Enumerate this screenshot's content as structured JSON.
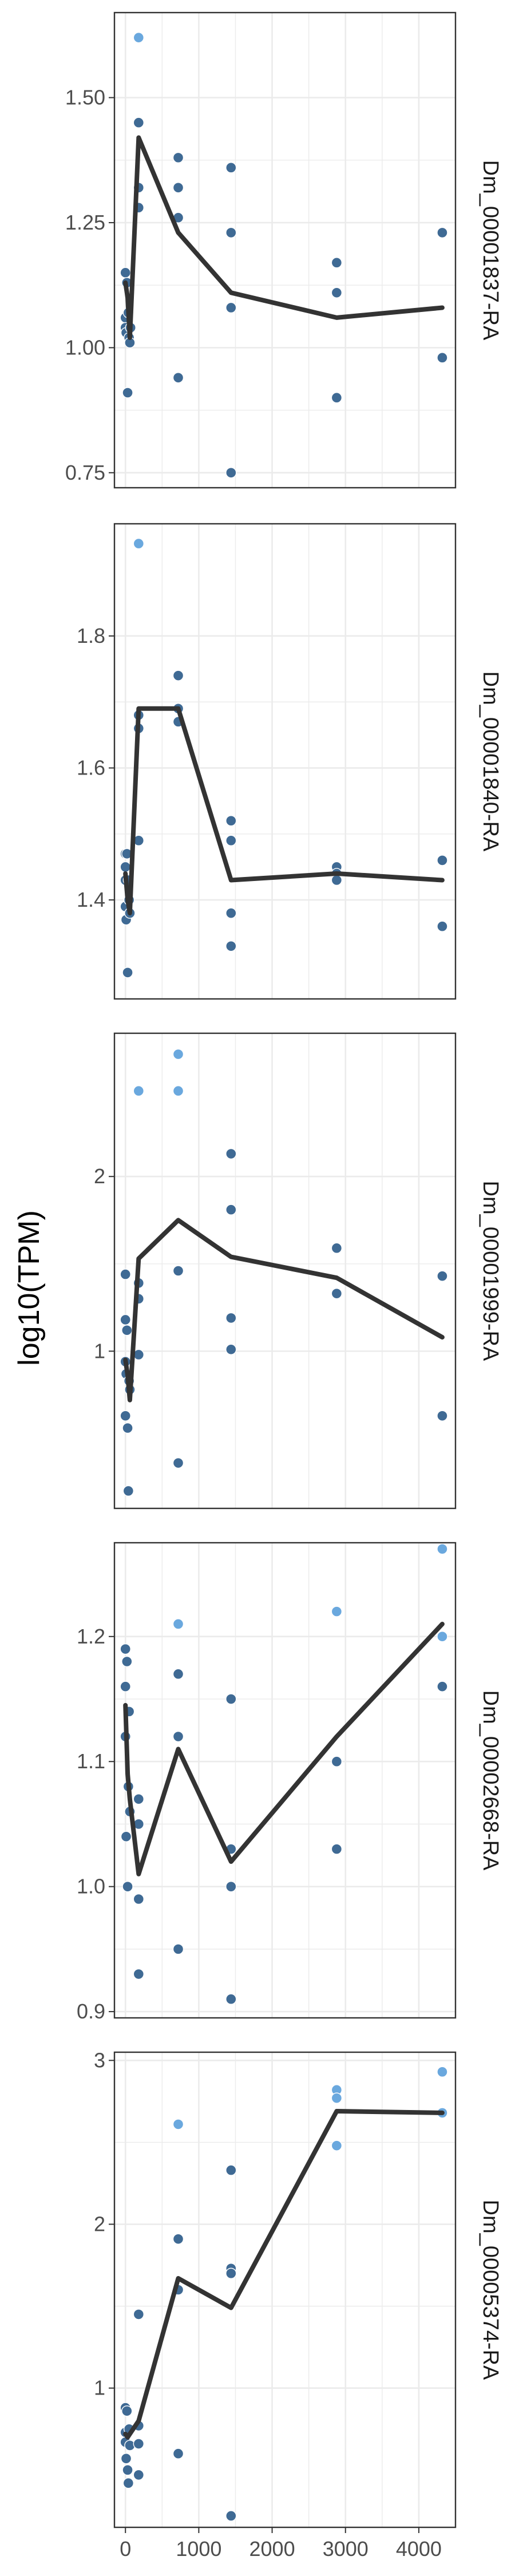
{
  "chart_data": {
    "type": "scatter",
    "ylabel": "log10(TPM)",
    "xlabel": "",
    "xlim": [
      -150,
      4500
    ],
    "x_ticks": [
      0,
      1000,
      2000,
      3000,
      4000
    ],
    "x_tick_labels": [
      "0",
      "1000",
      "2000",
      "3000",
      "4000"
    ],
    "grid": true,
    "legend": "none",
    "colors": {
      "point_dark": "#3f6a94",
      "point_light": "#6aa8de",
      "line": "#333333",
      "grid": "#ebebeb",
      "border": "#333333"
    },
    "panels": [
      {
        "strip_label": "Dm_00001837-RA",
        "ylim": [
          0.72,
          1.67
        ],
        "y_ticks": [
          0.75,
          1.0,
          1.25,
          1.5
        ],
        "y_tick_labels": [
          "0.75",
          "1.00",
          "1.25",
          "1.50"
        ],
        "points": [
          {
            "x": 0,
            "y": 1.15
          },
          {
            "x": 0,
            "y": 1.06
          },
          {
            "x": 0,
            "y": 1.04
          },
          {
            "x": 10,
            "y": 1.03
          },
          {
            "x": 20,
            "y": 1.13
          },
          {
            "x": 30,
            "y": 0.91
          },
          {
            "x": 40,
            "y": 1.07
          },
          {
            "x": 50,
            "y": 1.02
          },
          {
            "x": 60,
            "y": 1.01
          },
          {
            "x": 70,
            "y": 1.04
          },
          {
            "x": 180,
            "y": 1.62
          },
          {
            "x": 180,
            "y": 1.45
          },
          {
            "x": 180,
            "y": 1.32
          },
          {
            "x": 180,
            "y": 1.28
          },
          {
            "x": 720,
            "y": 1.38
          },
          {
            "x": 720,
            "y": 1.32
          },
          {
            "x": 720,
            "y": 1.26
          },
          {
            "x": 720,
            "y": 0.94
          },
          {
            "x": 1440,
            "y": 1.36
          },
          {
            "x": 1440,
            "y": 1.23
          },
          {
            "x": 1440,
            "y": 1.08
          },
          {
            "x": 1440,
            "y": 0.75
          },
          {
            "x": 2880,
            "y": 1.17
          },
          {
            "x": 2880,
            "y": 1.11
          },
          {
            "x": 2880,
            "y": 0.9
          },
          {
            "x": 4320,
            "y": 1.23
          },
          {
            "x": 4320,
            "y": 0.98
          }
        ],
        "line": {
          "x": [
            0,
            30,
            60,
            180,
            720,
            1440,
            2880,
            4320
          ],
          "y": [
            1.13,
            1.1,
            1.02,
            1.42,
            1.23,
            1.11,
            1.06,
            1.08
          ]
        }
      },
      {
        "strip_label": "Dm_00001840-RA",
        "ylim": [
          1.25,
          1.97
        ],
        "y_ticks": [
          1.4,
          1.6,
          1.8
        ],
        "y_tick_labels": [
          "1.4",
          "1.6",
          "1.8"
        ],
        "points": [
          {
            "x": 0,
            "y": 1.47
          },
          {
            "x": 0,
            "y": 1.45
          },
          {
            "x": 0,
            "y": 1.43
          },
          {
            "x": 0,
            "y": 1.39
          },
          {
            "x": 10,
            "y": 1.37
          },
          {
            "x": 20,
            "y": 1.47
          },
          {
            "x": 30,
            "y": 1.29
          },
          {
            "x": 40,
            "y": 1.43
          },
          {
            "x": 50,
            "y": 1.4
          },
          {
            "x": 60,
            "y": 1.38
          },
          {
            "x": 180,
            "y": 1.94
          },
          {
            "x": 180,
            "y": 1.68
          },
          {
            "x": 180,
            "y": 1.66
          },
          {
            "x": 180,
            "y": 1.49
          },
          {
            "x": 720,
            "y": 1.74
          },
          {
            "x": 720,
            "y": 1.69
          },
          {
            "x": 720,
            "y": 1.67
          },
          {
            "x": 1440,
            "y": 1.52
          },
          {
            "x": 1440,
            "y": 1.49
          },
          {
            "x": 1440,
            "y": 1.38
          },
          {
            "x": 1440,
            "y": 1.33
          },
          {
            "x": 2880,
            "y": 1.45
          },
          {
            "x": 2880,
            "y": 1.44
          },
          {
            "x": 2880,
            "y": 1.43
          },
          {
            "x": 4320,
            "y": 1.46
          },
          {
            "x": 4320,
            "y": 1.36
          }
        ],
        "line": {
          "x": [
            0,
            30,
            60,
            180,
            720,
            1440,
            2880,
            4320
          ],
          "y": [
            1.44,
            1.4,
            1.38,
            1.69,
            1.69,
            1.43,
            1.44,
            1.43
          ]
        }
      },
      {
        "strip_label": "Dm_00001999-RA",
        "ylim": [
          0.1,
          2.82
        ],
        "y_ticks": [
          1,
          2
        ],
        "y_tick_labels": [
          "1",
          "2"
        ],
        "points": [
          {
            "x": 0,
            "y": 1.44
          },
          {
            "x": 0,
            "y": 1.18
          },
          {
            "x": 0,
            "y": 0.94
          },
          {
            "x": 0,
            "y": 0.63
          },
          {
            "x": 10,
            "y": 0.87
          },
          {
            "x": 20,
            "y": 1.12
          },
          {
            "x": 30,
            "y": 0.56
          },
          {
            "x": 40,
            "y": 0.2
          },
          {
            "x": 50,
            "y": 0.83
          },
          {
            "x": 60,
            "y": 0.78
          },
          {
            "x": 180,
            "y": 2.49
          },
          {
            "x": 180,
            "y": 1.39
          },
          {
            "x": 180,
            "y": 1.3
          },
          {
            "x": 180,
            "y": 0.98
          },
          {
            "x": 720,
            "y": 2.7
          },
          {
            "x": 720,
            "y": 2.49
          },
          {
            "x": 720,
            "y": 1.46
          },
          {
            "x": 720,
            "y": 0.36
          },
          {
            "x": 1440,
            "y": 2.13
          },
          {
            "x": 1440,
            "y": 1.81
          },
          {
            "x": 1440,
            "y": 1.19
          },
          {
            "x": 1440,
            "y": 1.01
          },
          {
            "x": 2880,
            "y": 1.59
          },
          {
            "x": 2880,
            "y": 1.33
          },
          {
            "x": 4320,
            "y": 1.43
          },
          {
            "x": 4320,
            "y": 0.63
          }
        ],
        "line": {
          "x": [
            0,
            30,
            60,
            180,
            720,
            1440,
            2880,
            4320
          ],
          "y": [
            0.95,
            0.86,
            0.72,
            1.53,
            1.75,
            1.54,
            1.42,
            1.08
          ]
        }
      },
      {
        "strip_label": "Dm_00002668-RA",
        "ylim": [
          0.895,
          1.275
        ],
        "y_ticks": [
          0.9,
          1.0,
          1.1,
          1.2
        ],
        "y_tick_labels": [
          "0.9",
          "1.0",
          "1.1",
          "1.2"
        ],
        "points": [
          {
            "x": 0,
            "y": 1.19
          },
          {
            "x": 0,
            "y": 1.16
          },
          {
            "x": 0,
            "y": 1.12
          },
          {
            "x": 10,
            "y": 1.04
          },
          {
            "x": 20,
            "y": 1.18
          },
          {
            "x": 30,
            "y": 1.0
          },
          {
            "x": 40,
            "y": 1.08
          },
          {
            "x": 50,
            "y": 1.14
          },
          {
            "x": 60,
            "y": 1.06
          },
          {
            "x": 180,
            "y": 1.07
          },
          {
            "x": 180,
            "y": 1.05
          },
          {
            "x": 180,
            "y": 0.99
          },
          {
            "x": 180,
            "y": 0.93
          },
          {
            "x": 720,
            "y": 1.21
          },
          {
            "x": 720,
            "y": 1.17
          },
          {
            "x": 720,
            "y": 1.12
          },
          {
            "x": 720,
            "y": 0.95
          },
          {
            "x": 1440,
            "y": 1.15
          },
          {
            "x": 1440,
            "y": 1.03
          },
          {
            "x": 1440,
            "y": 1.0
          },
          {
            "x": 1440,
            "y": 0.91
          },
          {
            "x": 2880,
            "y": 1.22
          },
          {
            "x": 2880,
            "y": 1.1
          },
          {
            "x": 2880,
            "y": 1.03
          },
          {
            "x": 4320,
            "y": 1.27
          },
          {
            "x": 4320,
            "y": 1.2
          },
          {
            "x": 4320,
            "y": 1.16
          }
        ],
        "line": {
          "x": [
            0,
            30,
            60,
            180,
            720,
            1440,
            2880,
            4320
          ],
          "y": [
            1.145,
            1.09,
            1.07,
            1.01,
            1.11,
            1.02,
            1.12,
            1.21
          ]
        }
      },
      {
        "strip_label": "Dm_00005374-RA",
        "ylim": [
          0.15,
          3.05
        ],
        "y_ticks": [
          1,
          2,
          3
        ],
        "y_tick_labels": [
          "1",
          "2",
          "3"
        ],
        "points": [
          {
            "x": 0,
            "y": 0.88
          },
          {
            "x": 0,
            "y": 0.73
          },
          {
            "x": 0,
            "y": 0.67
          },
          {
            "x": 10,
            "y": 0.57
          },
          {
            "x": 20,
            "y": 0.86
          },
          {
            "x": 30,
            "y": 0.5
          },
          {
            "x": 40,
            "y": 0.42
          },
          {
            "x": 50,
            "y": 0.75
          },
          {
            "x": 60,
            "y": 0.65
          },
          {
            "x": 180,
            "y": 1.45
          },
          {
            "x": 180,
            "y": 0.77
          },
          {
            "x": 180,
            "y": 0.66
          },
          {
            "x": 180,
            "y": 0.47
          },
          {
            "x": 720,
            "y": 2.61
          },
          {
            "x": 720,
            "y": 1.91
          },
          {
            "x": 720,
            "y": 1.6
          },
          {
            "x": 720,
            "y": 0.6
          },
          {
            "x": 1440,
            "y": 2.33
          },
          {
            "x": 1440,
            "y": 1.73
          },
          {
            "x": 1440,
            "y": 1.7
          },
          {
            "x": 1440,
            "y": 0.22
          },
          {
            "x": 2880,
            "y": 2.82
          },
          {
            "x": 2880,
            "y": 2.77
          },
          {
            "x": 2880,
            "y": 2.48
          },
          {
            "x": 4320,
            "y": 2.93
          },
          {
            "x": 4320,
            "y": 2.68
          }
        ],
        "line": {
          "x": [
            0,
            30,
            60,
            180,
            720,
            1440,
            2880,
            4320
          ],
          "y": [
            0.72,
            0.7,
            0.72,
            0.8,
            1.67,
            1.49,
            2.69,
            2.68
          ]
        }
      }
    ]
  }
}
